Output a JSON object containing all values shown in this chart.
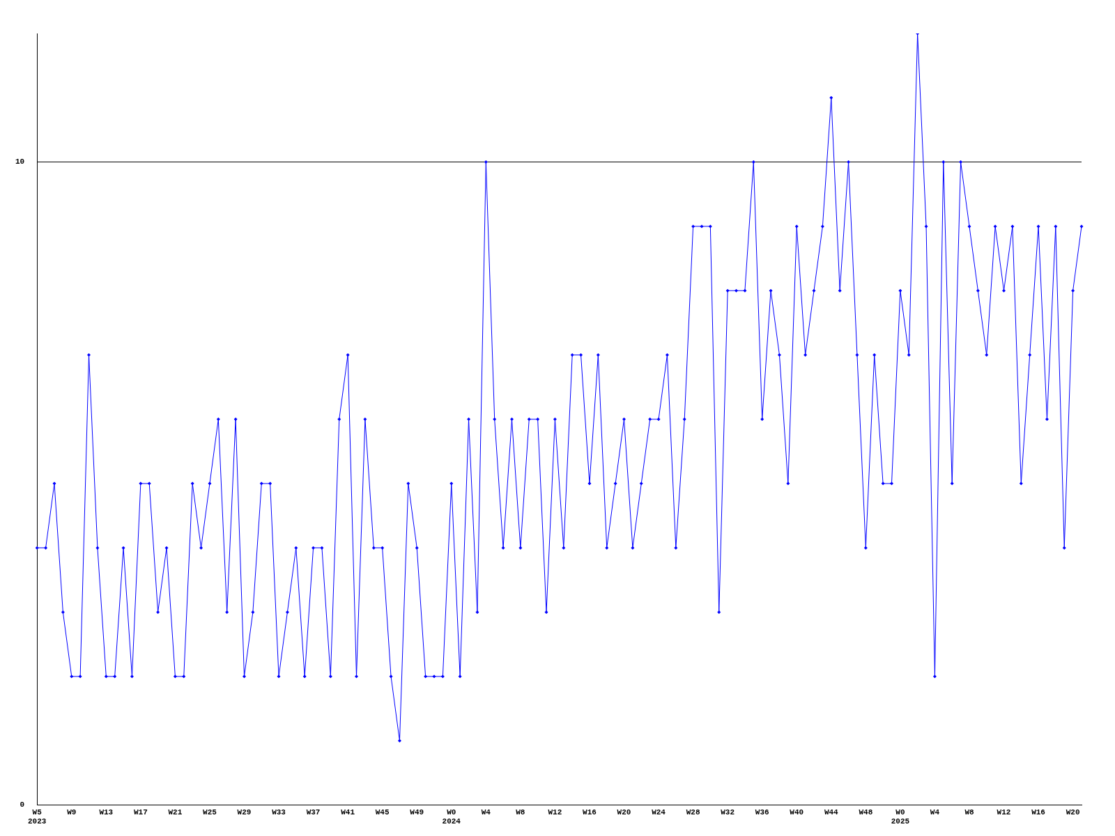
{
  "chart_data": {
    "type": "line",
    "categories": [
      "W5\n2023",
      null,
      null,
      null,
      "W9",
      null,
      null,
      null,
      "W13",
      null,
      null,
      null,
      "W17",
      null,
      null,
      null,
      "W21",
      null,
      null,
      null,
      "W25",
      null,
      null,
      null,
      "W29",
      null,
      null,
      null,
      "W33",
      null,
      null,
      null,
      "W37",
      null,
      null,
      null,
      "W41",
      null,
      null,
      null,
      "W45",
      null,
      null,
      null,
      "W49",
      null,
      null,
      null,
      "W0\n2024",
      null,
      null,
      null,
      "W4",
      null,
      null,
      null,
      "W8",
      null,
      null,
      null,
      "W12",
      null,
      null,
      null,
      "W16",
      null,
      null,
      null,
      "W20",
      null,
      null,
      null,
      "W24",
      null,
      null,
      null,
      "W28",
      null,
      null,
      null,
      "W32",
      null,
      null,
      null,
      "W36",
      null,
      null,
      null,
      "W40",
      null,
      null,
      null,
      "W44",
      null,
      null,
      null,
      "W48",
      null,
      null,
      null,
      "W0\n2025",
      null,
      null,
      null,
      "W4",
      null,
      null,
      null,
      "W8",
      null,
      null,
      null,
      "W12",
      null,
      null,
      null,
      "W16",
      null,
      null,
      null,
      "W20",
      null
    ],
    "series": [
      {
        "color": "#0000ff",
        "values": [
          4,
          4,
          5,
          3,
          2,
          2,
          7,
          4,
          2,
          2,
          4,
          2,
          5,
          5,
          3,
          4,
          2,
          2,
          5,
          4,
          5,
          6,
          3,
          6,
          2,
          3,
          5,
          5,
          2,
          3,
          4,
          2,
          4,
          4,
          2,
          6,
          7,
          2,
          6,
          4,
          4,
          2,
          1,
          5,
          4,
          2,
          2,
          2,
          5,
          2,
          6,
          3,
          10,
          6,
          4,
          6,
          4,
          6,
          6,
          3,
          6,
          4,
          7,
          7,
          5,
          7,
          4,
          5,
          6,
          4,
          5,
          6,
          6,
          7,
          4,
          6,
          9,
          9,
          9,
          3,
          8,
          8,
          8,
          10,
          6,
          8,
          7,
          5,
          9,
          7,
          8,
          9,
          11,
          8,
          10,
          7,
          4,
          7,
          5,
          5,
          8,
          7,
          12,
          9,
          2,
          10,
          5,
          10,
          9,
          8,
          7,
          9,
          8,
          9,
          5,
          7,
          9,
          6,
          9,
          4,
          8,
          9
        ]
      }
    ],
    "ylim": [
      0,
      12
    ],
    "yticks": [
      0,
      10
    ],
    "grid": "y",
    "marker": "diamond",
    "line_style": "solid",
    "legend": false
  }
}
